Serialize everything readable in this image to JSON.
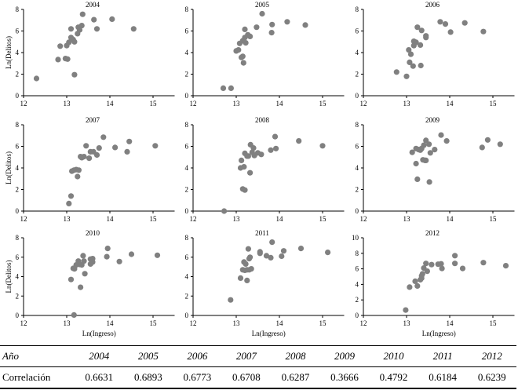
{
  "figure": {
    "ylabel": "Ln(Delitos)",
    "xlabel": "Ln(Ingreso)"
  },
  "table": {
    "header_label": "Año",
    "row_label": "Correlación",
    "years": [
      "2004",
      "2005",
      "2006",
      "2007",
      "2008",
      "2009",
      "2010",
      "2011",
      "2012"
    ],
    "correlations": [
      "0.6631",
      "0.6893",
      "0.6773",
      "0.6708",
      "0.6287",
      "0.3666",
      "0.4792",
      "0.6184",
      "0.6239"
    ]
  },
  "chart_data": [
    {
      "type": "scatter",
      "title": "2004",
      "xlabel": "",
      "ylabel": "Ln(Delitos)",
      "xlim": [
        12,
        15.5
      ],
      "ylim": [
        0,
        8
      ],
      "xticks": [
        12,
        13,
        14,
        15
      ],
      "yticks": [
        0,
        2,
        4,
        6,
        8
      ],
      "grid": false,
      "points": [
        [
          12.3,
          1.6
        ],
        [
          12.8,
          3.35
        ],
        [
          12.85,
          4.6
        ],
        [
          12.97,
          3.45
        ],
        [
          13.02,
          3.4
        ],
        [
          13.0,
          4.65
        ],
        [
          13.05,
          4.95
        ],
        [
          13.1,
          6.2
        ],
        [
          13.1,
          5.4
        ],
        [
          13.15,
          5.2
        ],
        [
          13.18,
          5.0
        ],
        [
          13.18,
          1.95
        ],
        [
          13.25,
          5.75
        ],
        [
          13.27,
          6.35
        ],
        [
          13.3,
          6.1
        ],
        [
          13.35,
          6.5
        ],
        [
          13.37,
          7.55
        ],
        [
          13.63,
          7.05
        ],
        [
          13.7,
          6.2
        ],
        [
          14.05,
          7.1
        ],
        [
          14.55,
          6.2
        ]
      ]
    },
    {
      "type": "scatter",
      "title": "2005",
      "xlabel": "",
      "ylabel": "",
      "xlim": [
        12,
        15.5
      ],
      "ylim": [
        0,
        8
      ],
      "xticks": [
        12,
        13,
        14,
        15
      ],
      "yticks": [
        0,
        2,
        4,
        6,
        8
      ],
      "grid": false,
      "points": [
        [
          12.7,
          0.7
        ],
        [
          12.88,
          0.7
        ],
        [
          13.0,
          4.15
        ],
        [
          13.05,
          4.25
        ],
        [
          13.08,
          4.85
        ],
        [
          13.12,
          3.55
        ],
        [
          13.15,
          3.65
        ],
        [
          13.15,
          5.1
        ],
        [
          13.17,
          3.05
        ],
        [
          13.2,
          6.15
        ],
        [
          13.2,
          5.4
        ],
        [
          13.22,
          4.9
        ],
        [
          13.27,
          5.65
        ],
        [
          13.32,
          5.5
        ],
        [
          13.47,
          6.35
        ],
        [
          13.6,
          7.6
        ],
        [
          13.82,
          5.85
        ],
        [
          13.83,
          6.6
        ],
        [
          14.18,
          6.85
        ],
        [
          14.6,
          6.55
        ]
      ]
    },
    {
      "type": "scatter",
      "title": "2006",
      "xlabel": "",
      "ylabel": "",
      "xlim": [
        12,
        15.5
      ],
      "ylim": [
        0,
        8
      ],
      "xticks": [
        12,
        13,
        14,
        15
      ],
      "yticks": [
        0,
        2,
        4,
        6,
        8
      ],
      "grid": false,
      "points": [
        [
          12.77,
          2.2
        ],
        [
          13.0,
          1.8
        ],
        [
          13.05,
          4.25
        ],
        [
          13.07,
          3.1
        ],
        [
          13.1,
          3.85
        ],
        [
          13.15,
          2.75
        ],
        [
          13.17,
          5.05
        ],
        [
          13.17,
          4.65
        ],
        [
          13.22,
          4.95
        ],
        [
          13.25,
          6.35
        ],
        [
          13.32,
          4.7
        ],
        [
          13.33,
          2.8
        ],
        [
          13.35,
          6.05
        ],
        [
          13.45,
          5.55
        ],
        [
          13.45,
          5.4
        ],
        [
          13.78,
          6.85
        ],
        [
          13.9,
          6.65
        ],
        [
          14.02,
          5.9
        ],
        [
          14.35,
          6.75
        ],
        [
          14.78,
          5.95
        ]
      ]
    },
    {
      "type": "scatter",
      "title": "2007",
      "xlabel": "",
      "ylabel": "Ln(Delitos)",
      "xlim": [
        12,
        15.5
      ],
      "ylim": [
        0,
        8
      ],
      "xticks": [
        12,
        13,
        14,
        15
      ],
      "yticks": [
        0,
        2,
        4,
        6,
        8
      ],
      "grid": false,
      "points": [
        [
          13.05,
          0.7
        ],
        [
          13.1,
          1.4
        ],
        [
          13.12,
          3.7
        ],
        [
          13.17,
          3.8
        ],
        [
          13.22,
          3.85
        ],
        [
          13.25,
          3.2
        ],
        [
          13.28,
          3.8
        ],
        [
          13.32,
          5.05
        ],
        [
          13.35,
          4.95
        ],
        [
          13.4,
          5.05
        ],
        [
          13.45,
          6.05
        ],
        [
          13.52,
          4.9
        ],
        [
          13.55,
          5.5
        ],
        [
          13.62,
          5.5
        ],
        [
          13.7,
          5.2
        ],
        [
          13.75,
          5.85
        ],
        [
          13.85,
          6.85
        ],
        [
          14.12,
          5.9
        ],
        [
          14.4,
          5.5
        ],
        [
          14.45,
          6.45
        ],
        [
          15.05,
          6.05
        ]
      ]
    },
    {
      "type": "scatter",
      "title": "2008",
      "xlabel": "",
      "ylabel": "",
      "xlim": [
        12,
        15.5
      ],
      "ylim": [
        0,
        8
      ],
      "xticks": [
        12,
        13,
        14,
        15
      ],
      "yticks": [
        0,
        2,
        4,
        6,
        8
      ],
      "grid": false,
      "points": [
        [
          12.72,
          0.0
        ],
        [
          13.1,
          4.0
        ],
        [
          13.12,
          4.7
        ],
        [
          13.15,
          2.05
        ],
        [
          13.18,
          4.1
        ],
        [
          13.2,
          1.95
        ],
        [
          13.2,
          5.35
        ],
        [
          13.25,
          5.1
        ],
        [
          13.28,
          5.1
        ],
        [
          13.32,
          3.55
        ],
        [
          13.33,
          6.15
        ],
        [
          13.37,
          5.45
        ],
        [
          13.4,
          5.85
        ],
        [
          13.42,
          5.15
        ],
        [
          13.5,
          5.4
        ],
        [
          13.58,
          5.25
        ],
        [
          13.8,
          5.65
        ],
        [
          13.9,
          6.9
        ],
        [
          13.92,
          5.8
        ],
        [
          14.45,
          6.5
        ],
        [
          15.0,
          6.05
        ]
      ]
    },
    {
      "type": "scatter",
      "title": "2009",
      "xlabel": "",
      "ylabel": "",
      "xlim": [
        12,
        15.5
      ],
      "ylim": [
        0,
        8
      ],
      "xticks": [
        12,
        13,
        14,
        15
      ],
      "yticks": [
        0,
        2,
        4,
        6,
        8
      ],
      "grid": false,
      "points": [
        [
          13.13,
          5.45
        ],
        [
          13.22,
          5.8
        ],
        [
          13.22,
          4.4
        ],
        [
          13.25,
          2.95
        ],
        [
          13.28,
          5.7
        ],
        [
          13.32,
          5.65
        ],
        [
          13.35,
          5.8
        ],
        [
          13.38,
          4.75
        ],
        [
          13.4,
          6.1
        ],
        [
          13.43,
          4.7
        ],
        [
          13.45,
          6.55
        ],
        [
          13.45,
          4.7
        ],
        [
          13.52,
          6.2
        ],
        [
          13.53,
          2.7
        ],
        [
          13.55,
          5.4
        ],
        [
          13.65,
          5.7
        ],
        [
          13.8,
          7.05
        ],
        [
          13.93,
          6.5
        ],
        [
          14.75,
          5.9
        ],
        [
          14.88,
          6.6
        ],
        [
          15.17,
          6.2
        ]
      ]
    },
    {
      "type": "scatter",
      "title": "2010",
      "xlabel": "Ln(Ingreso)",
      "ylabel": "Ln(Delitos)",
      "xlim": [
        12,
        15.5
      ],
      "ylim": [
        0,
        8
      ],
      "xticks": [
        12,
        13,
        14,
        15
      ],
      "yticks": [
        0,
        2,
        4,
        6,
        8
      ],
      "grid": false,
      "points": [
        [
          13.1,
          3.7
        ],
        [
          13.15,
          4.85
        ],
        [
          13.17,
          0.05
        ],
        [
          13.18,
          4.8
        ],
        [
          13.22,
          5.2
        ],
        [
          13.27,
          5.6
        ],
        [
          13.3,
          5.25
        ],
        [
          13.32,
          2.9
        ],
        [
          13.35,
          5.2
        ],
        [
          13.38,
          6.15
        ],
        [
          13.4,
          5.6
        ],
        [
          13.42,
          4.3
        ],
        [
          13.55,
          5.8
        ],
        [
          13.55,
          5.3
        ],
        [
          13.6,
          5.85
        ],
        [
          13.6,
          5.5
        ],
        [
          13.93,
          6.05
        ],
        [
          13.95,
          6.9
        ],
        [
          14.22,
          5.55
        ],
        [
          14.5,
          6.3
        ],
        [
          15.1,
          6.2
        ]
      ]
    },
    {
      "type": "scatter",
      "title": "2011",
      "xlabel": "Ln(Ingreso)",
      "ylabel": "",
      "xlim": [
        12,
        15.5
      ],
      "ylim": [
        0,
        8
      ],
      "xticks": [
        12,
        13,
        14,
        15
      ],
      "yticks": [
        0,
        2,
        4,
        6,
        8
      ],
      "grid": false,
      "points": [
        [
          12.87,
          1.6
        ],
        [
          13.1,
          3.85
        ],
        [
          13.15,
          4.7
        ],
        [
          13.18,
          5.5
        ],
        [
          13.2,
          4.65
        ],
        [
          13.22,
          5.3
        ],
        [
          13.25,
          4.7
        ],
        [
          13.25,
          3.6
        ],
        [
          13.28,
          6.85
        ],
        [
          13.3,
          4.7
        ],
        [
          13.3,
          5.85
        ],
        [
          13.32,
          6.0
        ],
        [
          13.35,
          4.8
        ],
        [
          13.55,
          6.4
        ],
        [
          13.55,
          6.55
        ],
        [
          13.7,
          6.15
        ],
        [
          13.8,
          5.95
        ],
        [
          13.83,
          7.55
        ],
        [
          14.05,
          6.1
        ],
        [
          14.1,
          6.65
        ],
        [
          14.5,
          6.9
        ],
        [
          15.12,
          6.5
        ]
      ]
    },
    {
      "type": "scatter",
      "title": "2012",
      "xlabel": "Ln(Ingreso)",
      "ylabel": "",
      "xlim": [
        12,
        15.5
      ],
      "ylim": [
        0,
        10
      ],
      "xticks": [
        12,
        13,
        14,
        15
      ],
      "yticks": [
        0,
        2,
        4,
        6,
        8,
        10
      ],
      "grid": false,
      "points": [
        [
          12.98,
          0.7
        ],
        [
          13.07,
          3.65
        ],
        [
          13.2,
          4.4
        ],
        [
          13.25,
          3.8
        ],
        [
          13.32,
          4.6
        ],
        [
          13.35,
          4.8
        ],
        [
          13.35,
          5.1
        ],
        [
          13.37,
          5.35
        ],
        [
          13.4,
          6.1
        ],
        [
          13.45,
          6.7
        ],
        [
          13.48,
          5.7
        ],
        [
          13.58,
          6.55
        ],
        [
          13.73,
          6.6
        ],
        [
          13.8,
          6.65
        ],
        [
          13.82,
          6.05
        ],
        [
          14.12,
          7.7
        ],
        [
          14.12,
          6.7
        ],
        [
          14.3,
          6.05
        ],
        [
          14.78,
          6.8
        ],
        [
          15.3,
          6.4
        ]
      ]
    }
  ]
}
